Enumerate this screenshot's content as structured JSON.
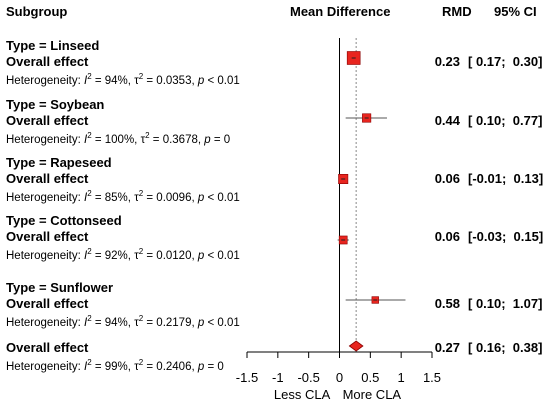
{
  "header": {
    "subgroup": "Subgroup",
    "mean_difference": "Mean Difference",
    "rmd": "RMD",
    "ci": "95% CI"
  },
  "rows": [
    {
      "type_label": "Type = Linseed",
      "overall_label": "Overall effect",
      "het_prefix": "Heterogeneity: ",
      "het_i2": "= 94%, ",
      "het_tau": "= 0.0353, ",
      "het_p": "< 0.01",
      "rmd": "0.23",
      "ci": "[ 0.17;  0.30]"
    },
    {
      "type_label": "Type = Soybean",
      "overall_label": "Overall effect",
      "het_prefix": "Heterogeneity: ",
      "het_i2": "= 100%, ",
      "het_tau": "= 0.3678, ",
      "het_p": "= 0",
      "rmd": "0.44",
      "ci": "[ 0.10;  0.77]"
    },
    {
      "type_label": "Type = Rapeseed",
      "overall_label": "Overall effect",
      "het_prefix": "Heterogeneity: ",
      "het_i2": "= 85%, ",
      "het_tau": "= 0.0096, ",
      "het_p": "< 0.01",
      "rmd": "0.06",
      "ci": "[-0.01;  0.13]"
    },
    {
      "type_label": "Type = Cottonseed",
      "overall_label": "Overall effect",
      "het_prefix": "Heterogeneity: ",
      "het_i2": "= 92%, ",
      "het_tau": "= 0.0120, ",
      "het_p": "< 0.01",
      "rmd": "0.06",
      "ci": "[-0.03;  0.15]"
    },
    {
      "type_label": "Type = Sunflower",
      "overall_label": "Overall effect",
      "het_prefix": "Heterogeneity: ",
      "het_i2": "= 94%, ",
      "het_tau": "= 0.2179, ",
      "het_p": "< 0.01",
      "rmd": "0.58",
      "ci": "[ 0.10;  1.07]"
    },
    {
      "type_label": "",
      "overall_label": "Overall effect",
      "het_prefix": "Heterogeneity: ",
      "het_i2": "= 99%, ",
      "het_tau": "= 0.2406, ",
      "het_p": "= 0",
      "rmd": "0.27",
      "ci": "[ 0.16;  0.38]"
    }
  ],
  "axis": {
    "ticks": [
      "-1.5",
      "-1",
      "-0.5",
      "0",
      "0.5",
      "1",
      "1.5"
    ],
    "left_label": "Less CLA",
    "right_label": "More CLA"
  },
  "colors": {
    "marker": "#e8251f",
    "marker_border": "#8b0000",
    "line": "#000000",
    "ref_line": "#888888"
  },
  "chart_data": {
    "type": "forest",
    "xlim": [
      -1.5,
      1.5
    ],
    "reference_line": 0,
    "overall_line": 0.27,
    "categories": [
      "Linseed",
      "Soybean",
      "Rapeseed",
      "Cottonseed",
      "Sunflower",
      "Overall"
    ],
    "estimates": [
      0.23,
      0.44,
      0.06,
      0.06,
      0.58,
      0.27
    ],
    "ci_low": [
      0.17,
      0.1,
      -0.01,
      -0.03,
      0.1,
      0.16
    ],
    "ci_high": [
      0.3,
      0.77,
      0.13,
      0.15,
      1.07,
      0.38
    ],
    "weights": [
      1.0,
      0.5,
      0.6,
      0.45,
      0.3,
      null
    ],
    "xlabel_left": "Less CLA",
    "xlabel_right": "More CLA"
  }
}
